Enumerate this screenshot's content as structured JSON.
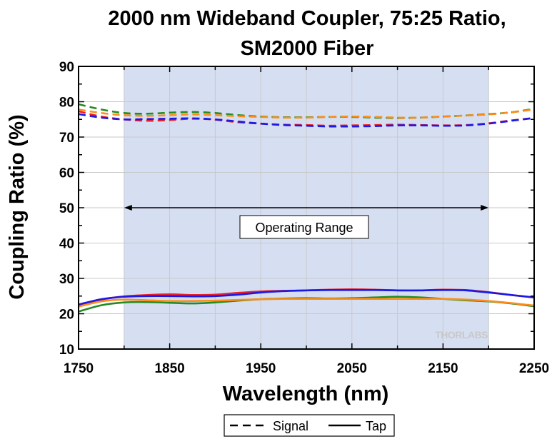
{
  "chart_data": {
    "type": "line",
    "title_lines": [
      "2000 nm Wideband Coupler, 75:25 Ratio,",
      "SM2000 Fiber"
    ],
    "xlabel": "Wavelength (nm)",
    "ylabel": "Coupling Ratio (%)",
    "xlim": [
      1750,
      2250
    ],
    "ylim": [
      10,
      90
    ],
    "xticks": [
      1750,
      1850,
      1950,
      2050,
      2150,
      2250
    ],
    "yticks": [
      10,
      20,
      30,
      40,
      50,
      60,
      70,
      80,
      90
    ],
    "grid": true,
    "operating_range": {
      "x": [
        1800,
        2200
      ],
      "label": "Operating Range",
      "arrow_y": 50
    },
    "watermark": "THORLABS",
    "legend": {
      "placement": "bottom-center",
      "entries": [
        {
          "label": "Signal",
          "style": "dashed"
        },
        {
          "label": "Tap",
          "style": "solid"
        }
      ]
    },
    "colors": {
      "series_red": "#e8202a",
      "series_blue": "#1a1ae6",
      "series_green": "#228b22",
      "series_orange": "#ff8c1a",
      "range_fill": "#d6dff2",
      "grid": "#c8c8c8"
    },
    "series": [
      {
        "role": "signal",
        "color": "red",
        "style": "dashed",
        "x": [
          1750,
          1775,
          1800,
          1825,
          1850,
          1875,
          1900,
          1925,
          1950,
          1975,
          2000,
          2025,
          2050,
          2075,
          2100,
          2125,
          2150,
          2175,
          2200,
          2225,
          2250
        ],
        "y": [
          77.3,
          75.8,
          75.0,
          74.6,
          74.8,
          75.2,
          74.9,
          74.2,
          73.8,
          73.5,
          73.4,
          73.2,
          73.3,
          73.4,
          73.5,
          73.4,
          73.3,
          73.4,
          73.9,
          74.7,
          75.4
        ]
      },
      {
        "role": "signal",
        "color": "blue",
        "style": "dashed",
        "x": [
          1750,
          1775,
          1800,
          1825,
          1850,
          1875,
          1900,
          1925,
          1950,
          1975,
          2000,
          2025,
          2050,
          2075,
          2100,
          2125,
          2150,
          2175,
          2200,
          2225,
          2250
        ],
        "y": [
          76.5,
          75.5,
          75.0,
          75.1,
          75.2,
          75.3,
          75.0,
          74.4,
          73.8,
          73.4,
          73.2,
          73.0,
          73.0,
          73.1,
          73.3,
          73.3,
          73.2,
          73.3,
          73.8,
          74.6,
          75.4
        ]
      },
      {
        "role": "signal",
        "color": "green",
        "style": "dashed",
        "x": [
          1750,
          1775,
          1800,
          1825,
          1850,
          1875,
          1900,
          1925,
          1950,
          1975,
          2000,
          2025,
          2050,
          2075,
          2100,
          2125,
          2150,
          2175,
          2200,
          2225,
          2250
        ],
        "y": [
          79.3,
          77.8,
          76.8,
          76.6,
          76.9,
          77.1,
          76.8,
          76.2,
          75.8,
          75.6,
          75.6,
          75.7,
          75.7,
          75.5,
          75.4,
          75.5,
          75.8,
          76.1,
          76.5,
          77.0,
          78.0
        ]
      },
      {
        "role": "signal",
        "color": "orange",
        "style": "dashed",
        "x": [
          1750,
          1775,
          1800,
          1825,
          1850,
          1875,
          1900,
          1925,
          1950,
          1975,
          2000,
          2025,
          2050,
          2075,
          2100,
          2125,
          2150,
          2175,
          2200,
          2225,
          2250
        ],
        "y": [
          77.8,
          76.8,
          76.2,
          76.0,
          76.2,
          76.4,
          76.2,
          75.9,
          75.7,
          75.5,
          75.5,
          75.7,
          75.8,
          75.7,
          75.5,
          75.5,
          75.8,
          76.1,
          76.4,
          77.0,
          77.8
        ]
      },
      {
        "role": "tap",
        "color": "red",
        "style": "solid",
        "x": [
          1750,
          1775,
          1800,
          1825,
          1850,
          1875,
          1900,
          1925,
          1950,
          1975,
          2000,
          2025,
          2050,
          2075,
          2100,
          2125,
          2150,
          2175,
          2200,
          2225,
          2250
        ],
        "y": [
          22.3,
          24.0,
          24.9,
          25.3,
          25.5,
          25.3,
          25.4,
          25.9,
          26.3,
          26.5,
          26.6,
          26.8,
          26.9,
          26.8,
          26.6,
          26.6,
          26.8,
          26.7,
          26.1,
          25.3,
          24.6
        ]
      },
      {
        "role": "tap",
        "color": "blue",
        "style": "solid",
        "x": [
          1750,
          1775,
          1800,
          1825,
          1850,
          1875,
          1900,
          1925,
          1950,
          1975,
          2000,
          2025,
          2050,
          2075,
          2100,
          2125,
          2150,
          2175,
          2200,
          2225,
          2250
        ],
        "y": [
          22.6,
          24.1,
          24.8,
          25.0,
          25.0,
          24.9,
          25.0,
          25.4,
          26.0,
          26.4,
          26.6,
          26.7,
          26.7,
          26.7,
          26.6,
          26.6,
          26.7,
          26.6,
          26.0,
          25.3,
          24.6
        ]
      },
      {
        "role": "tap",
        "color": "green",
        "style": "solid",
        "x": [
          1750,
          1775,
          1800,
          1825,
          1850,
          1875,
          1900,
          1925,
          1950,
          1975,
          2000,
          2025,
          2050,
          2075,
          2100,
          2125,
          2150,
          2175,
          2200,
          2225,
          2250
        ],
        "y": [
          20.6,
          22.4,
          23.2,
          23.3,
          23.1,
          22.9,
          23.2,
          23.7,
          24.1,
          24.3,
          24.4,
          24.3,
          24.4,
          24.6,
          24.8,
          24.6,
          24.2,
          23.8,
          23.5,
          22.9,
          22.1
        ]
      },
      {
        "role": "tap",
        "color": "orange",
        "style": "solid",
        "x": [
          1750,
          1775,
          1800,
          1825,
          1850,
          1875,
          1900,
          1925,
          1950,
          1975,
          2000,
          2025,
          2050,
          2075,
          2100,
          2125,
          2150,
          2175,
          2200,
          2225,
          2250
        ],
        "y": [
          22.0,
          23.5,
          24.0,
          23.8,
          23.6,
          23.6,
          23.7,
          23.9,
          24.1,
          24.2,
          24.2,
          24.2,
          24.2,
          24.2,
          24.2,
          24.2,
          24.2,
          24.0,
          23.6,
          23.0,
          22.3
        ]
      }
    ]
  }
}
